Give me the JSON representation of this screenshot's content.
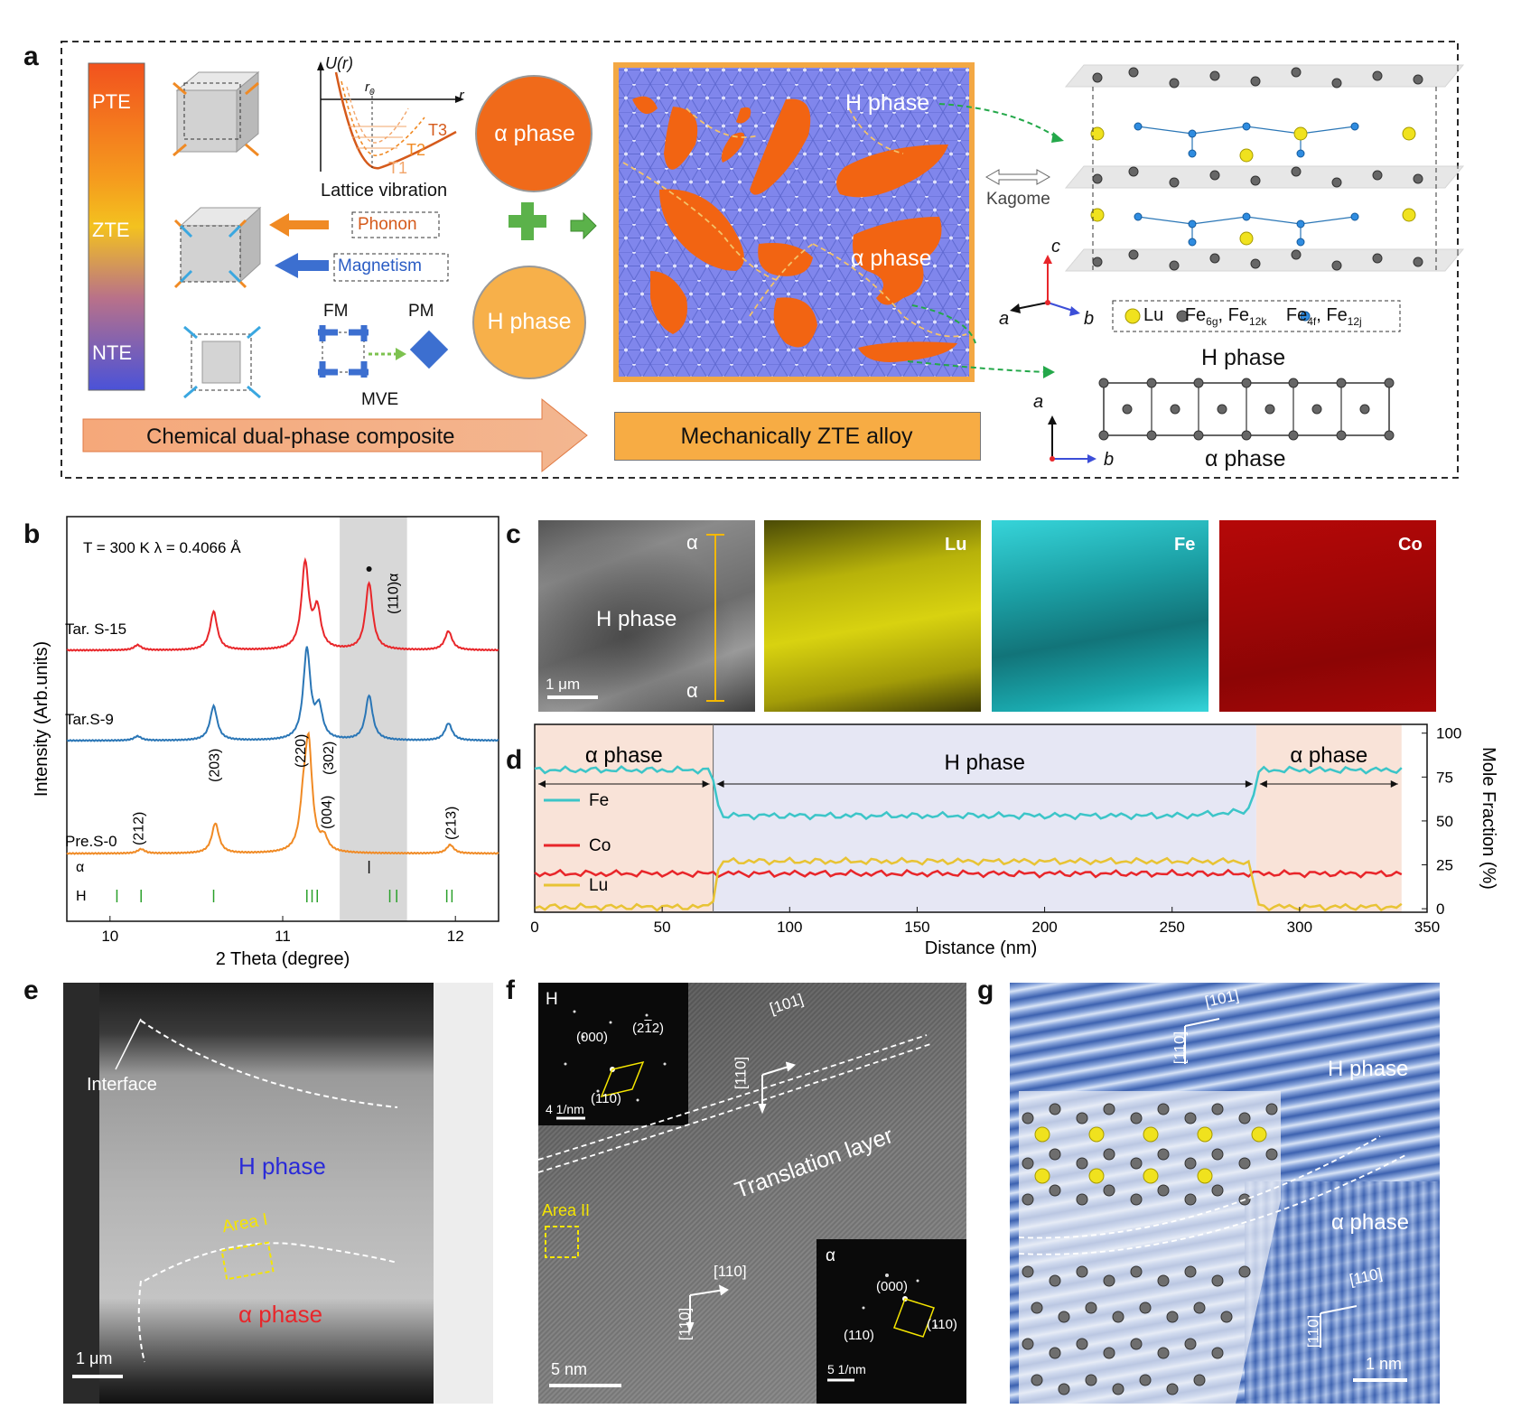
{
  "panels": {
    "a": "a",
    "b": "b",
    "c": "c",
    "d": "d",
    "e": "e",
    "f": "f",
    "g": "g"
  },
  "colors": {
    "red": "#e8262a",
    "blue": "#2a76b6",
    "orange": "#f08a24",
    "cyan": "#3cc5c8",
    "lu_yellow": "#e8c334",
    "alpha_bg": "#f9e3d8",
    "h_bg": "#e6e7f4",
    "grey_band": "#d8d8d8"
  },
  "panel_a": {
    "bar_labels": {
      "pte": "PTE",
      "zte": "ZTE",
      "nte": "NTE"
    },
    "potential": {
      "u_label": "U(r)",
      "r_label": "r",
      "r0_label": "r",
      "r0_sub": "0",
      "t1": "T1",
      "t2": "T2",
      "t3": "T3",
      "caption": "Lattice vibration"
    },
    "phonon": "Phonon",
    "magnetism": "Magnetism",
    "fm": "FM",
    "pm": "PM",
    "mve": "MVE",
    "alpha_circle": "α phase",
    "h_circle": "H phase",
    "composite_arrow": "Chemical dual-phase composite",
    "alloy_label": "Mechanically ZTE alloy",
    "map_h_label": "H phase",
    "map_alpha_label": "α phase",
    "kagome": "Kagome",
    "axes_top": {
      "c": "c",
      "a": "a",
      "b": "b"
    },
    "axes_bottom": {
      "a": "a",
      "b": "b"
    },
    "legend": {
      "lu": "Lu",
      "fe1": "Fe",
      "fe1_sub": "6g",
      "fe1b": ", Fe",
      "fe1b_sub": "12k",
      "fe2": "Fe",
      "fe2_sub": "4f",
      "fe2b": ", Fe",
      "fe2b_sub": "12j"
    },
    "h_phase_title": "H phase",
    "alpha_phase_title": "α phase"
  },
  "chart_data": [
    {
      "id": "b",
      "type": "line",
      "title": "",
      "annotation": "T = 300 K   λ = 0.4066  Å",
      "xlabel": "2 Theta (degree)",
      "ylabel": "Intensity (Arb.units)",
      "xlim": [
        9.75,
        12.25
      ],
      "xticks": [
        10,
        11,
        12
      ],
      "shaded_range": [
        11.33,
        11.72
      ],
      "series": [
        {
          "name": "Tar. S-15",
          "color": "#e8262a",
          "peaks": [
            [
              10.16,
              0.06
            ],
            [
              10.6,
              0.45
            ],
            [
              11.13,
              1.0
            ],
            [
              11.2,
              0.45
            ],
            [
              11.5,
              0.78
            ],
            [
              11.96,
              0.22
            ]
          ]
        },
        {
          "name": "Tar.S-9",
          "color": "#2a76b6",
          "peaks": [
            [
              10.16,
              0.05
            ],
            [
              10.6,
              0.4
            ],
            [
              11.14,
              1.05
            ],
            [
              11.21,
              0.35
            ],
            [
              11.5,
              0.52
            ],
            [
              11.96,
              0.2
            ]
          ]
        },
        {
          "name": "Pre.S-0",
          "color": "#f08a24",
          "peaks": [
            [
              10.18,
              0.05
            ],
            [
              10.61,
              0.35
            ],
            [
              11.12,
              0.45
            ],
            [
              11.15,
              1.2
            ],
            [
              11.24,
              0.15
            ],
            [
              11.97,
              0.1
            ]
          ]
        }
      ],
      "peak_labels": [
        "(212)",
        "(203)",
        "(220)",
        "(004)",
        "(302)",
        "(213)",
        "(110)α"
      ],
      "tick_rows": {
        "alpha_label": "α",
        "alpha_ticks": [
          11.5
        ],
        "h_label": "H",
        "h_ticks": [
          10.04,
          10.18,
          10.6,
          11.14,
          11.17,
          11.2,
          11.62,
          11.66,
          11.95,
          11.98
        ]
      }
    },
    {
      "id": "d",
      "type": "line",
      "title": "",
      "xlabel": "Distance (nm)",
      "ylabel": "Mole Fraction (%)",
      "xlim": [
        0,
        350
      ],
      "ylim": [
        -2,
        105
      ],
      "xticks": [
        0,
        50,
        100,
        150,
        200,
        250,
        300,
        350
      ],
      "yticks": [
        0,
        25,
        50,
        75,
        100
      ],
      "regions": [
        {
          "label": "α phase",
          "from": 0,
          "to": 70
        },
        {
          "label": "H phase",
          "from": 70,
          "to": 283
        },
        {
          "label": "α phase",
          "from": 283,
          "to": 340
        }
      ],
      "series": [
        {
          "name": "Fe",
          "color": "#3cc5c8",
          "alpha_value": 79,
          "h_value": 53
        },
        {
          "name": "Co",
          "color": "#e8262a",
          "alpha_value": 20,
          "h_value": 20
        },
        {
          "name": "Lu",
          "color": "#e8c334",
          "alpha_value": 1,
          "h_value": 27
        }
      ]
    }
  ],
  "panel_c": {
    "alpha_top": "α",
    "alpha_bottom": "α",
    "h_phase": "H phase",
    "scale": "1 μm",
    "lu": "Lu",
    "fe": "Fe",
    "co": "Co"
  },
  "panel_e": {
    "interface": "Interface",
    "h_phase": "H phase",
    "area": "Area I",
    "alpha_phase": "α phase",
    "scale": "1 μm"
  },
  "panel_f": {
    "inset_h": "H",
    "spot_000": "(000)",
    "spot_2m12": "(2",
    "spot_2m12_bar": "1",
    "spot_2m12_end": "2)",
    "spot_110": "(110)",
    "inset_scale": "4 1/nm",
    "dir_101": "[101]",
    "dir_110": "[110]",
    "translation": "Translation layer",
    "area": "Area II",
    "dir_110b": "[110]",
    "dir_m110": "[110]",
    "scale": "5 nm",
    "inset_alpha": "α",
    "a_000": "(000)",
    "a_m110": "(110)",
    "a_110": "(110)",
    "a_scale": "5 1/nm"
  },
  "panel_g": {
    "dir_101": "[101]",
    "dir_110": "[110]",
    "h_phase": "H phase",
    "alpha_phase": "α phase",
    "dir_110b": "[110]",
    "dir_m110": "[110]",
    "scale": "1 nm"
  }
}
